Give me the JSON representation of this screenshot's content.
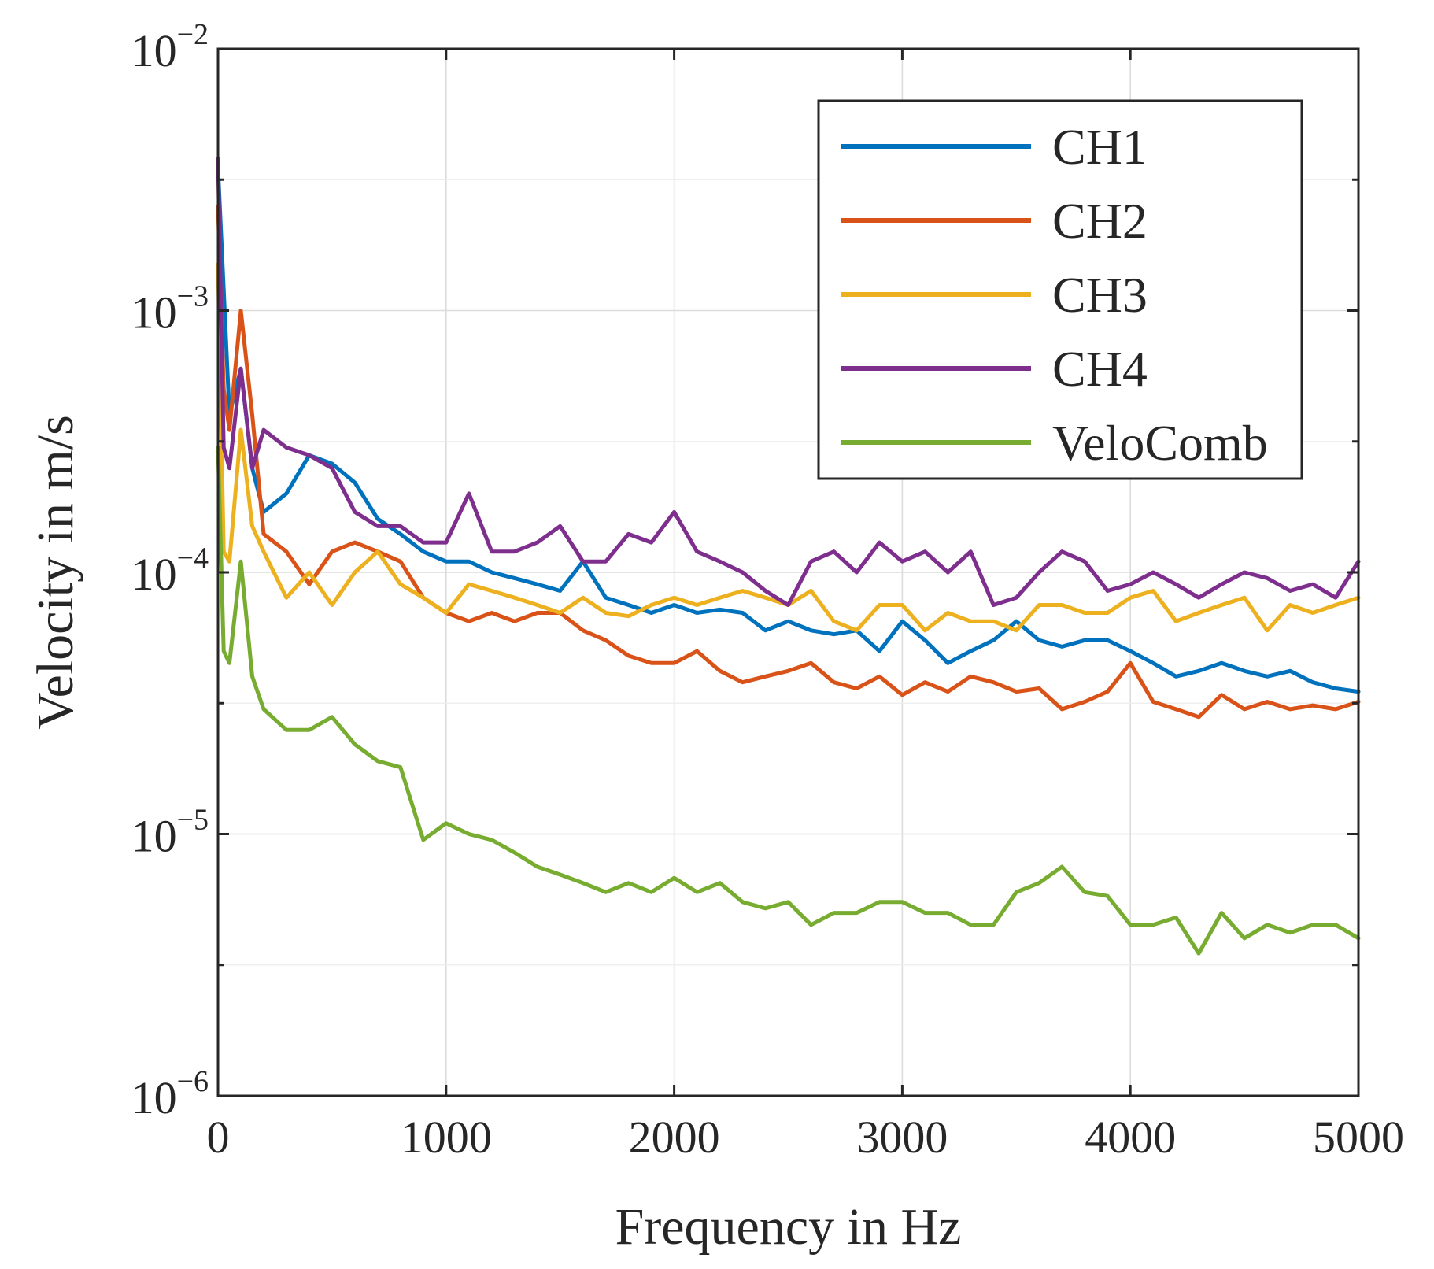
{
  "chart_data": {
    "type": "line",
    "title": "",
    "xlabel": "Frequency in Hz",
    "ylabel": "Velocity in m/s",
    "xlim": [
      0,
      5000
    ],
    "ylim": [
      1e-06,
      0.01
    ],
    "yscale": "log",
    "grid": true,
    "legend_position": "top-right",
    "x_ticks": [
      0,
      1000,
      2000,
      3000,
      4000,
      5000
    ],
    "x_tick_labels": [
      "0",
      "1000",
      "2000",
      "3000",
      "4000",
      "5000"
    ],
    "y_ticks": [
      1e-06,
      1e-05,
      0.0001,
      0.001,
      0.01
    ],
    "y_tick_labels": [
      {
        "base": "10",
        "exp": "−6"
      },
      {
        "base": "10",
        "exp": "−5"
      },
      {
        "base": "10",
        "exp": "−4"
      },
      {
        "base": "10",
        "exp": "−3"
      },
      {
        "base": "10",
        "exp": "−2"
      }
    ],
    "x": [
      0,
      25,
      50,
      100,
      150,
      200,
      300,
      400,
      500,
      600,
      700,
      800,
      900,
      1000,
      1100,
      1200,
      1300,
      1400,
      1500,
      1600,
      1700,
      1800,
      1900,
      2000,
      2100,
      2200,
      2300,
      2400,
      2500,
      2600,
      2700,
      2800,
      2900,
      3000,
      3100,
      3200,
      3300,
      3400,
      3500,
      3600,
      3700,
      3800,
      3900,
      4000,
      4100,
      4200,
      4300,
      4400,
      4500,
      4600,
      4700,
      4800,
      4900,
      5000
    ],
    "series": [
      {
        "name": "CH1",
        "color": "#0072BD",
        "values": [
          0.0035,
          0.0012,
          0.0004,
          0.0006,
          0.00025,
          0.00017,
          0.0002,
          0.00028,
          0.00026,
          0.00022,
          0.00016,
          0.00014,
          0.00012,
          0.00011,
          0.00011,
          0.0001,
          9.5e-05,
          9e-05,
          8.5e-05,
          0.00011,
          8e-05,
          7.5e-05,
          7e-05,
          7.5e-05,
          7e-05,
          7.2e-05,
          7e-05,
          6e-05,
          6.5e-05,
          6e-05,
          5.8e-05,
          6e-05,
          5e-05,
          6.5e-05,
          5.5e-05,
          4.5e-05,
          5e-05,
          5.5e-05,
          6.5e-05,
          5.5e-05,
          5.2e-05,
          5.5e-05,
          5.5e-05,
          5e-05,
          4.5e-05,
          4e-05,
          4.2e-05,
          4.5e-05,
          4.2e-05,
          4e-05,
          4.2e-05,
          3.8e-05,
          3.6e-05,
          3.5e-05
        ]
      },
      {
        "name": "CH2",
        "color": "#D95319",
        "values": [
          0.0025,
          0.0005,
          0.00035,
          0.001,
          0.0004,
          0.00014,
          0.00012,
          9e-05,
          0.00012,
          0.00013,
          0.00012,
          0.00011,
          8e-05,
          7e-05,
          6.5e-05,
          7e-05,
          6.5e-05,
          7e-05,
          7e-05,
          6e-05,
          5.5e-05,
          4.8e-05,
          4.5e-05,
          4.5e-05,
          5e-05,
          4.2e-05,
          3.8e-05,
          4e-05,
          4.2e-05,
          4.5e-05,
          3.8e-05,
          3.6e-05,
          4e-05,
          3.4e-05,
          3.8e-05,
          3.5e-05,
          4e-05,
          3.8e-05,
          3.5e-05,
          3.6e-05,
          3e-05,
          3.2e-05,
          3.5e-05,
          4.5e-05,
          3.2e-05,
          3e-05,
          2.8e-05,
          3.4e-05,
          3e-05,
          3.2e-05,
          3e-05,
          3.1e-05,
          3e-05,
          3.2e-05
        ]
      },
      {
        "name": "CH3",
        "color": "#EDB120",
        "values": [
          0.0015,
          0.00012,
          0.00011,
          0.00035,
          0.00015,
          0.00012,
          8e-05,
          0.0001,
          7.5e-05,
          0.0001,
          0.00012,
          9e-05,
          8e-05,
          7e-05,
          9e-05,
          8.5e-05,
          8e-05,
          7.5e-05,
          7e-05,
          8e-05,
          7e-05,
          6.8e-05,
          7.5e-05,
          8e-05,
          7.5e-05,
          8e-05,
          8.5e-05,
          8e-05,
          7.5e-05,
          8.5e-05,
          6.5e-05,
          6e-05,
          7.5e-05,
          7.5e-05,
          6e-05,
          7e-05,
          6.5e-05,
          6.5e-05,
          6e-05,
          7.5e-05,
          7.5e-05,
          7e-05,
          7e-05,
          8e-05,
          8.5e-05,
          6.5e-05,
          7e-05,
          7.5e-05,
          8e-05,
          6e-05,
          7.5e-05,
          7e-05,
          7.5e-05,
          8e-05
        ]
      },
      {
        "name": "CH4",
        "color": "#7E2F8E",
        "values": [
          0.0038,
          0.0003,
          0.00025,
          0.0006,
          0.00025,
          0.00035,
          0.0003,
          0.00028,
          0.00025,
          0.00017,
          0.00015,
          0.00015,
          0.00013,
          0.00013,
          0.0002,
          0.00012,
          0.00012,
          0.00013,
          0.00015,
          0.00011,
          0.00011,
          0.00014,
          0.00013,
          0.00017,
          0.00012,
          0.00011,
          0.0001,
          8.5e-05,
          7.5e-05,
          0.00011,
          0.00012,
          0.0001,
          0.00013,
          0.00011,
          0.00012,
          0.0001,
          0.00012,
          7.5e-05,
          8e-05,
          0.0001,
          0.00012,
          0.00011,
          8.5e-05,
          9e-05,
          0.0001,
          9e-05,
          8e-05,
          9e-05,
          0.0001,
          9.5e-05,
          8.5e-05,
          9e-05,
          8e-05,
          0.00011
        ]
      },
      {
        "name": "VeloComb",
        "color": "#77AC30",
        "values": [
          0.0003,
          5e-05,
          4.5e-05,
          0.00011,
          4e-05,
          3e-05,
          2.5e-05,
          2.5e-05,
          2.8e-05,
          2.2e-05,
          1.9e-05,
          1.8e-05,
          9.5e-06,
          1.1e-05,
          1e-05,
          9.5e-06,
          8.5e-06,
          7.5e-06,
          7e-06,
          6.5e-06,
          6e-06,
          6.5e-06,
          6e-06,
          6.8e-06,
          6e-06,
          6.5e-06,
          5.5e-06,
          5.2e-06,
          5.5e-06,
          4.5e-06,
          5e-06,
          5e-06,
          5.5e-06,
          5.5e-06,
          5e-06,
          5e-06,
          4.5e-06,
          4.5e-06,
          6e-06,
          6.5e-06,
          7.5e-06,
          6e-06,
          5.8e-06,
          4.5e-06,
          4.5e-06,
          4.8e-06,
          3.5e-06,
          5e-06,
          4e-06,
          4.5e-06,
          4.2e-06,
          4.5e-06,
          4.5e-06,
          4e-06
        ]
      }
    ]
  }
}
